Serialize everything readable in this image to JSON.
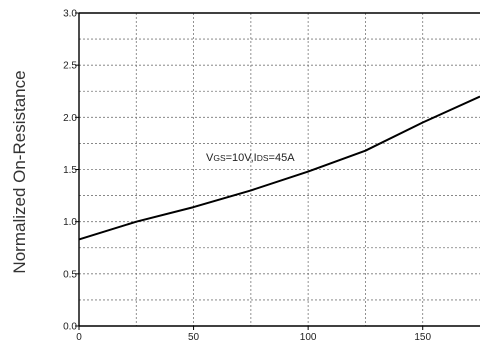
{
  "chart_data": {
    "type": "line",
    "xlabel": "",
    "ylabel": "Normalized On-Resistance",
    "xlim": [
      0,
      175
    ],
    "ylim": [
      0,
      3.0
    ],
    "x_ticks": [
      "0",
      "50",
      "100",
      "150"
    ],
    "y_ticks": [
      "0.0",
      "0.5",
      "1.0",
      "1.5",
      "2.0",
      "2.5",
      "3.0"
    ],
    "grid": true,
    "annotation": {
      "text": "VGS=10V,IDS=45A",
      "parts": [
        {
          "t": "V",
          "small": false
        },
        {
          "t": "GS",
          "small": true
        },
        {
          "t": "=10V,I",
          "small": false
        },
        {
          "t": "DS",
          "small": true
        },
        {
          "t": "=45A",
          "small": false
        }
      ]
    },
    "series": [
      {
        "x": [
          0,
          25,
          50,
          75,
          100,
          125,
          150,
          175
        ],
        "values": [
          0.83,
          1.0,
          1.14,
          1.3,
          1.48,
          1.68,
          1.95,
          2.2
        ]
      }
    ]
  }
}
